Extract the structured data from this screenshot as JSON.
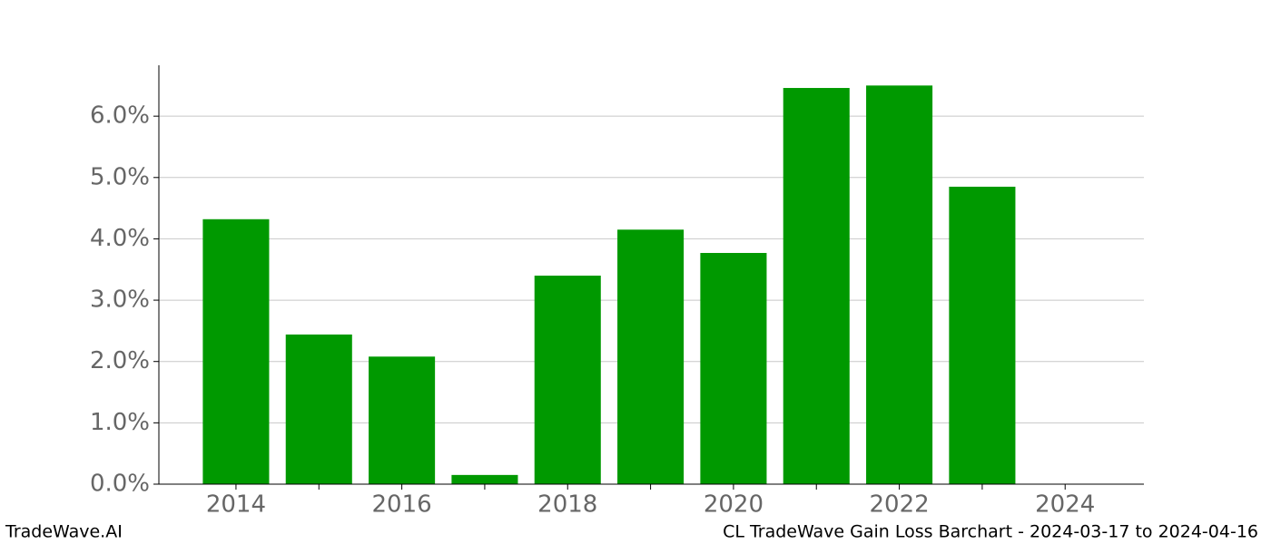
{
  "chart_data": {
    "type": "bar",
    "title": "CL TradeWave Gain Loss Barchart - 2024-03-17 to 2024-04-16",
    "brand": "TradeWave.AI",
    "x": [
      2014,
      2015,
      2016,
      2017,
      2018,
      2019,
      2020,
      2021,
      2022,
      2023
    ],
    "values": [
      4.32,
      2.44,
      2.08,
      0.15,
      3.4,
      4.15,
      3.77,
      6.46,
      6.5,
      4.85
    ],
    "color": "#009900",
    "xlim": [
      2013.07,
      2024.95
    ],
    "xticks": [
      2014,
      2016,
      2018,
      2020,
      2022,
      2024
    ],
    "xminorticks": [
      2015,
      2017,
      2019,
      2021,
      2023
    ],
    "ylim": [
      0,
      6.83
    ],
    "yticks": [
      {
        "value": 0,
        "label": "0.0%"
      },
      {
        "value": 1,
        "label": "1.0%"
      },
      {
        "value": 2,
        "label": "2.0%"
      },
      {
        "value": 3,
        "label": "3.0%"
      },
      {
        "value": 4,
        "label": "4.0%"
      },
      {
        "value": 5,
        "label": "5.0%"
      },
      {
        "value": 6,
        "label": "6.0%"
      }
    ],
    "grid": true
  }
}
